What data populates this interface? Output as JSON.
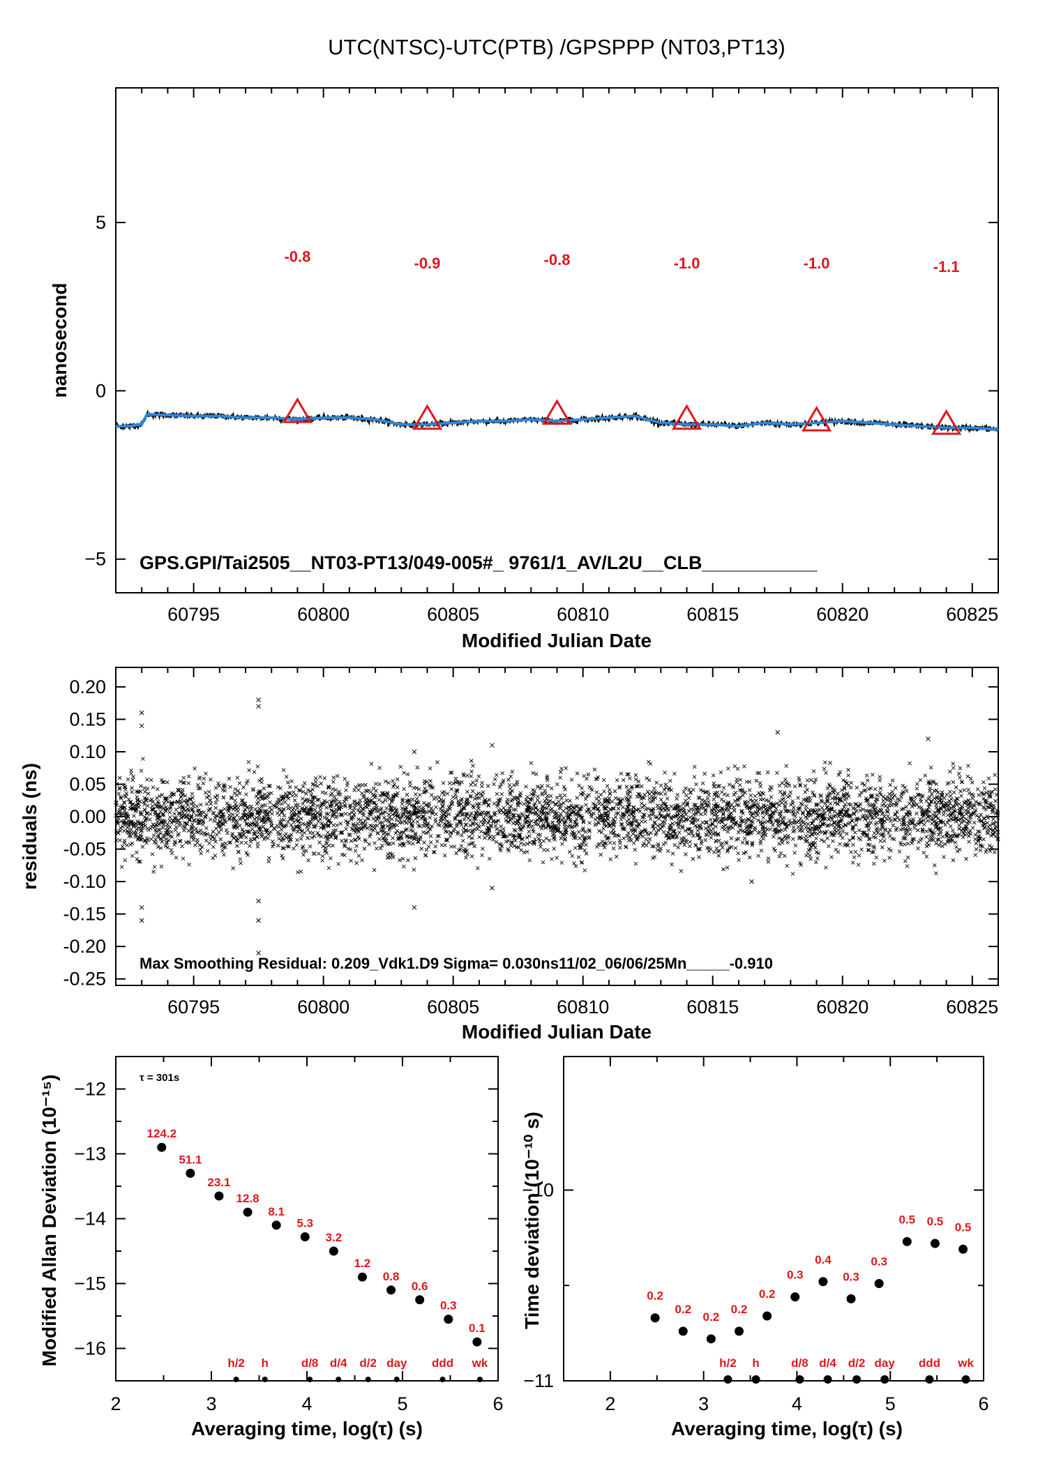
{
  "chart_data": [
    {
      "type": "line",
      "title": "UTC(NTSC)-UTC(PTB)  /GPSPPP  (NT03,PT13)",
      "xlabel": "Modified Julian Date",
      "ylabel": "nanosecond",
      "xlim": [
        60792,
        60826
      ],
      "ylim": [
        -6,
        9
      ],
      "xticks": [
        "60795",
        "60800",
        "60805",
        "60810",
        "60815",
        "60820",
        "60825"
      ],
      "yticks": [
        "-5",
        "0",
        "5"
      ],
      "grid": false,
      "series": [
        {
          "style": "black points with blue smoothed line",
          "x": [
            60792.0,
            60792.5,
            60793.0,
            60793.2,
            60794,
            60795,
            60796,
            60797,
            60798,
            60799,
            60800,
            60801,
            60802,
            60803,
            60804,
            60805,
            60806,
            60807,
            60808,
            60809,
            60810,
            60811,
            60812,
            60813,
            60814,
            60815,
            60816,
            60817,
            60818,
            60819,
            60820,
            60821,
            60822,
            60823,
            60824,
            60825,
            60826
          ],
          "y": [
            -1.05,
            -1.05,
            -1.0,
            -0.7,
            -0.72,
            -0.75,
            -0.75,
            -0.8,
            -0.8,
            -0.85,
            -0.8,
            -0.8,
            -0.85,
            -1.0,
            -1.0,
            -0.95,
            -0.9,
            -0.9,
            -0.85,
            -0.9,
            -0.85,
            -0.8,
            -0.75,
            -0.95,
            -1.0,
            -1.0,
            -1.05,
            -0.95,
            -1.0,
            -0.95,
            -0.9,
            -0.95,
            -1.0,
            -1.05,
            -1.1,
            -1.1,
            -1.15
          ]
        }
      ],
      "markers": {
        "x": [
          60799,
          60804,
          60809,
          60814,
          60819,
          60824
        ],
        "y": [
          -0.65,
          -0.85,
          -0.7,
          -0.85,
          -0.9,
          -1.0
        ],
        "labels": [
          "-0.8",
          "-0.9",
          "-0.8",
          "-1.0",
          "-1.0",
          "-1.1"
        ],
        "label_y": [
          4.0,
          3.8,
          3.9,
          3.8,
          3.8,
          3.7
        ],
        "color": "#e0161b"
      },
      "annotation": "GPS.GPI/Tai2505__NT03-PT13/049-005#_  9761/1_AV/L2U__CLB___________"
    },
    {
      "type": "scatter",
      "xlabel": "Modified Julian Date",
      "ylabel": "residuals (ns)",
      "xlim": [
        60792,
        60826
      ],
      "ylim": [
        -0.26,
        0.23
      ],
      "xticks": [
        "60795",
        "60800",
        "60805",
        "60810",
        "60815",
        "60820",
        "60825"
      ],
      "yticks": [
        "0.20",
        "0.15",
        "0.10",
        "0.05",
        "0.00",
        "-0.05",
        "-0.10",
        "-0.15",
        "-0.20",
        "-0.25"
      ],
      "sigma": 0.03,
      "max_residual": 0.209,
      "outliers": [
        [
          60793,
          0.16
        ],
        [
          60793,
          0.14
        ],
        [
          60793,
          -0.14
        ],
        [
          60793,
          -0.16
        ],
        [
          60797.5,
          0.18
        ],
        [
          60797.5,
          0.17
        ],
        [
          60797.5,
          -0.13
        ],
        [
          60797.5,
          -0.16
        ],
        [
          60797.5,
          -0.21
        ],
        [
          60803.5,
          0.1
        ],
        [
          60803.5,
          -0.14
        ],
        [
          60806.5,
          0.11
        ],
        [
          60806.5,
          -0.11
        ],
        [
          60817.5,
          0.13
        ],
        [
          60823.3,
          0.12
        ],
        [
          60816.5,
          -0.1
        ]
      ],
      "annotation": "Max Smoothing Residual: 0.209_Vdk1.D9  Sigma= 0.030ns11/02_06/06/25Mn_____-0.910"
    },
    {
      "type": "scatter",
      "xlabel": "Averaging time, log(τ) (s)",
      "ylabel": "Modified Allan Deviation (10⁻¹⁵)",
      "xlim": [
        2,
        6
      ],
      "ylim": [
        -16.5,
        -11.5
      ],
      "xticks": [
        "2",
        "3",
        "4",
        "5",
        "6"
      ],
      "yticks": [
        "-12",
        "-13",
        "-14",
        "-15",
        "-16"
      ],
      "tau_note": "τ = 301s",
      "x": [
        2.48,
        2.78,
        3.08,
        3.38,
        3.68,
        3.98,
        4.28,
        4.58,
        4.88,
        5.18,
        5.48,
        5.78
      ],
      "y": [
        -12.9,
        -13.3,
        -13.65,
        -13.9,
        -14.1,
        -14.28,
        -14.5,
        -14.9,
        -15.1,
        -15.25,
        -15.55,
        -15.9
      ],
      "point_labels": [
        "124.2",
        "51.1",
        "23.1",
        "12.8",
        "8.1",
        "5.3",
        "3.2",
        "1.2",
        "0.8",
        "0.6",
        "0.3",
        "0.1"
      ],
      "baseline_x": [
        3.26,
        3.56,
        4.03,
        4.33,
        4.64,
        4.94,
        5.42,
        5.81
      ],
      "baseline_labels": [
        "h/2",
        "h",
        "d/8",
        "d/4",
        "d/2",
        "day",
        "ddd",
        "wk"
      ]
    },
    {
      "type": "scatter",
      "xlabel": "Averaging time, log(τ) (s)",
      "ylabel": "Time deviation (10⁻¹⁰ s)",
      "xlim": [
        1.5,
        6
      ],
      "ylim": [
        -11,
        -9.3
      ],
      "xticks": [
        "2",
        "3",
        "4",
        "5",
        "6"
      ],
      "yticks": [
        "-10",
        "-11"
      ],
      "x": [
        2.48,
        2.78,
        3.08,
        3.38,
        3.68,
        3.98,
        4.28,
        4.58,
        4.88,
        5.18,
        5.48,
        5.78
      ],
      "y": [
        -10.67,
        -10.74,
        -10.78,
        -10.74,
        -10.66,
        -10.56,
        -10.48,
        -10.57,
        -10.49,
        -10.27,
        -10.28,
        -10.31
      ],
      "point_labels": [
        "0.2",
        "0.2",
        "0.2",
        "0.2",
        "0.2",
        "0.3",
        "0.4",
        "0.3",
        "0.3",
        "0.5",
        "0.5",
        "0.5"
      ],
      "baseline_x": [
        3.26,
        3.56,
        4.03,
        4.33,
        4.64,
        4.94,
        5.42,
        5.81
      ],
      "baseline_labels": [
        "h/2",
        "h",
        "d/8",
        "d/4",
        "d/2",
        "day",
        "ddd",
        "wk"
      ]
    }
  ]
}
